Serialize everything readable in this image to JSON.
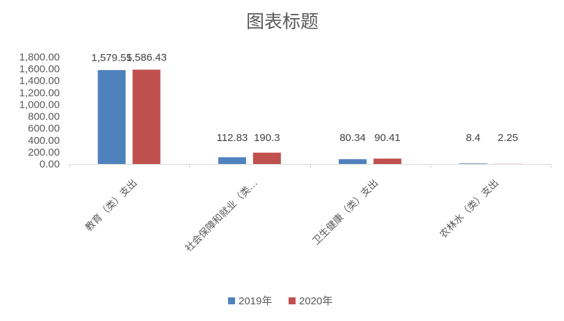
{
  "chart_data": {
    "type": "bar",
    "title": "图表标题",
    "categories": [
      "教育（类）支出",
      "社会保障和就业（类…",
      "卫生健康（类）支出",
      "农林水（类）支出"
    ],
    "series": [
      {
        "name": "2019年",
        "color": "#4f81bd",
        "values": [
          1579.55,
          112.83,
          80.34,
          8.4
        ],
        "labels": [
          "1,579.55",
          "112.83",
          "80.34",
          "8.4"
        ]
      },
      {
        "name": "2020年",
        "color": "#c0504d",
        "values": [
          1586.43,
          190.3,
          90.41,
          2.25
        ],
        "labels": [
          "1,586.43",
          "190.3",
          "90.41",
          "2.25"
        ]
      }
    ],
    "yticks": [
      "0.00",
      "200.00",
      "400.00",
      "600.00",
      "800.00",
      "1,000.00",
      "1,200.00",
      "1,400.00",
      "1,600.00",
      "1,800.00"
    ],
    "ylim": [
      0,
      1800
    ],
    "xlabel": "",
    "ylabel": "",
    "legend_position": "bottom",
    "grid": false
  }
}
